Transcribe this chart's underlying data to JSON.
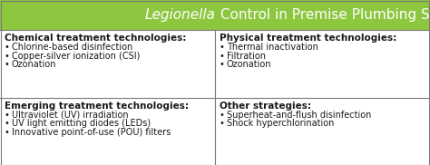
{
  "title_italic": "Legionella",
  "title_rest": " Control in Premise Plumbing Systems",
  "header_bg": "#8dc63f",
  "header_text_color": "#ffffff",
  "cell_bg": "#ffffff",
  "border_color": "#7a7a7a",
  "text_color": "#1a1a1a",
  "title_fontsize": 11.0,
  "header_fontsize": 7.5,
  "bullet_fontsize": 7.0,
  "cells": [
    {
      "col": 0,
      "row": 0,
      "header": "Chemical treatment technologies:",
      "bullets": [
        "Chlorine-based disinfection",
        "Copper-silver ionization (CSI)",
        "Ozonation"
      ]
    },
    {
      "col": 1,
      "row": 0,
      "header": "Physical treatment technologies:",
      "bullets": [
        "Thermal inactivation",
        "Filtration",
        "Ozonation"
      ]
    },
    {
      "col": 0,
      "row": 1,
      "header": "Emerging treatment technologies:",
      "bullets": [
        "Ultraviolet (UV) irradiation",
        "UV light emitting diodes (LEDs)",
        "Innovative point-of-use (POU) filters"
      ]
    },
    {
      "col": 1,
      "row": 1,
      "header": "Other strategies:",
      "bullets": [
        "Superheat-and-flush disinfection",
        "Shock hyperchlorination"
      ]
    }
  ],
  "figwidth": 4.74,
  "figheight": 1.82,
  "dpi": 100
}
